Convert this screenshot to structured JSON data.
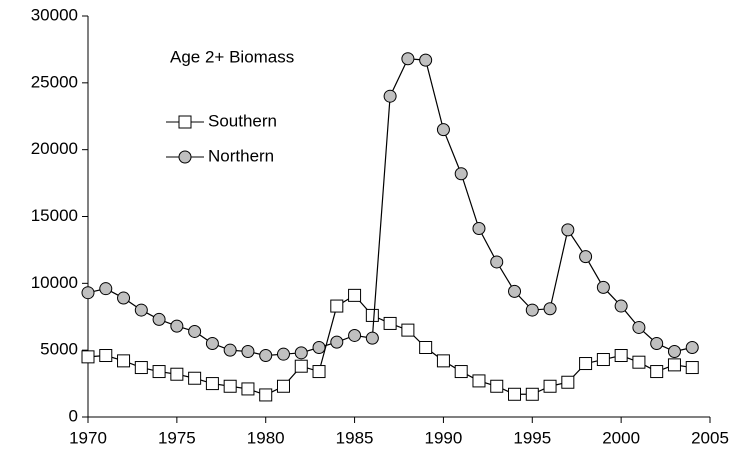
{
  "chart_data": {
    "type": "line",
    "annotation": "Age 2+ Biomass",
    "x": [
      1970,
      1971,
      1972,
      1973,
      1974,
      1975,
      1976,
      1977,
      1978,
      1979,
      1980,
      1981,
      1982,
      1983,
      1984,
      1985,
      1986,
      1987,
      1988,
      1989,
      1990,
      1991,
      1992,
      1993,
      1994,
      1995,
      1996,
      1997,
      1998,
      1999,
      2000,
      2001,
      2002,
      2003,
      2004
    ],
    "series": [
      {
        "name": "Southern",
        "marker": "square",
        "color": "#ffffff",
        "values": [
          4500,
          4600,
          4200,
          3700,
          3400,
          3200,
          2900,
          2500,
          2300,
          2100,
          1650,
          2300,
          3800,
          3400,
          8300,
          9100,
          7600,
          7000,
          6500,
          5200,
          4200,
          3400,
          2700,
          2300,
          1700,
          1700,
          2300,
          2600,
          4000,
          4300,
          4600,
          4100,
          3400,
          3900,
          3700
        ]
      },
      {
        "name": "Northern",
        "marker": "circle",
        "color": "#c0c0c0",
        "values": [
          9300,
          9600,
          8900,
          8000,
          7300,
          6800,
          6400,
          5500,
          5000,
          4900,
          4600,
          4700,
          4800,
          5200,
          5600,
          6100,
          5900,
          24000,
          26800,
          26700,
          21500,
          18200,
          14100,
          11600,
          9400,
          8000,
          8100,
          14000,
          12000,
          9700,
          8300,
          6700,
          5500,
          4900,
          5200
        ]
      }
    ],
    "xlim": [
      1970,
      2005
    ],
    "xticks": [
      1970,
      1975,
      1980,
      1985,
      1990,
      1995,
      2000,
      2005
    ],
    "ylim": [
      0,
      30000
    ],
    "yticks": [
      0,
      5000,
      10000,
      15000,
      20000,
      25000,
      30000
    ]
  }
}
